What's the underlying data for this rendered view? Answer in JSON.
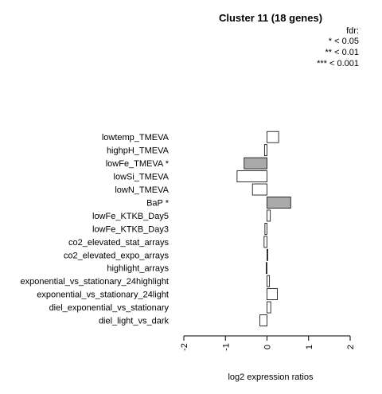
{
  "chart_data": {
    "type": "bar",
    "orientation": "horizontal",
    "title": "Cluster 11 (18 genes)",
    "xlabel": "log2 expression ratios",
    "ylabel": "",
    "xlim": [
      -2,
      2
    ],
    "xticks": [
      "-2",
      "-1",
      "0",
      "1",
      "2"
    ],
    "legend": {
      "heading": "fdr:",
      "entries": [
        "* < 0.05",
        "** < 0.01",
        "*** < 0.001"
      ],
      "placement": "top-right"
    },
    "categories": [
      "lowtemp_TMEVA",
      "highpH_TMEVA",
      "lowFe_TMEVA *",
      "lowSi_TMEVA",
      "lowN_TMEVA",
      "BaP *",
      "lowFe_KTKB_Day5",
      "lowFe_KTKB_Day3",
      "co2_elevated_stat_arrays",
      "co2_elevated_expo_arrays",
      "highlight_arrays",
      "exponential_vs_stationary_24highlight",
      "exponential_vs_stationary_24light",
      "diel_exponential_vs_stationary",
      "diel_light_vs_dark"
    ],
    "values": [
      0.28,
      -0.06,
      -0.55,
      -0.72,
      -0.35,
      0.57,
      0.08,
      -0.05,
      -0.07,
      0.02,
      -0.02,
      0.06,
      0.25,
      0.09,
      -0.17
    ],
    "significant": [
      false,
      false,
      true,
      false,
      false,
      true,
      false,
      false,
      false,
      false,
      false,
      false,
      false,
      false,
      false
    ],
    "colors": {
      "significant": "#aaaaaa",
      "normal": "#ffffff",
      "stroke": "#000000"
    }
  }
}
